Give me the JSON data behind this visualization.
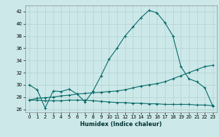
{
  "xlabel": "Humidex (Indice chaleur)",
  "bg_color": "#cce8e8",
  "grid_color": "#b0d0d0",
  "line_color": "#006666",
  "xlim": [
    -0.5,
    23.5
  ],
  "ylim": [
    25.5,
    43
  ],
  "yticks": [
    26,
    28,
    30,
    32,
    34,
    36,
    38,
    40,
    42
  ],
  "xticks": [
    0,
    1,
    2,
    3,
    4,
    5,
    6,
    7,
    8,
    9,
    10,
    11,
    12,
    13,
    14,
    15,
    16,
    17,
    18,
    19,
    20,
    21,
    22,
    23
  ],
  "line1_x": [
    0,
    1,
    2,
    3,
    4,
    5,
    6,
    7,
    8,
    9,
    10,
    11,
    12,
    13,
    14,
    15,
    16,
    17,
    18,
    19,
    20,
    21,
    22,
    23
  ],
  "line1_y": [
    30.0,
    29.2,
    26.2,
    29.0,
    28.9,
    29.3,
    28.5,
    27.2,
    29.0,
    31.5,
    34.2,
    36.0,
    38.0,
    39.5,
    41.0,
    42.2,
    41.8,
    40.2,
    38.0,
    33.0,
    31.0,
    30.5,
    29.5,
    26.5
  ],
  "line2_x": [
    0,
    1,
    2,
    3,
    4,
    5,
    6,
    7,
    8,
    9,
    10,
    11,
    12,
    13,
    14,
    15,
    16,
    17,
    18,
    19,
    20,
    21,
    22,
    23
  ],
  "line2_y": [
    27.5,
    27.8,
    27.9,
    28.0,
    28.2,
    28.3,
    28.5,
    28.6,
    28.7,
    28.8,
    28.9,
    29.0,
    29.2,
    29.5,
    29.8,
    30.0,
    30.2,
    30.5,
    31.0,
    31.5,
    32.0,
    32.5,
    33.0,
    33.2
  ],
  "line3_x": [
    0,
    1,
    2,
    3,
    4,
    5,
    6,
    7,
    8,
    9,
    10,
    11,
    12,
    13,
    14,
    15,
    16,
    17,
    18,
    19,
    20,
    21,
    22,
    23
  ],
  "line3_y": [
    27.5,
    27.5,
    27.4,
    27.4,
    27.4,
    27.5,
    27.5,
    27.5,
    27.4,
    27.3,
    27.2,
    27.1,
    27.1,
    27.0,
    27.0,
    26.9,
    26.9,
    26.8,
    26.8,
    26.8,
    26.8,
    26.7,
    26.7,
    26.6
  ],
  "tick_fontsize": 5,
  "xlabel_fontsize": 6
}
